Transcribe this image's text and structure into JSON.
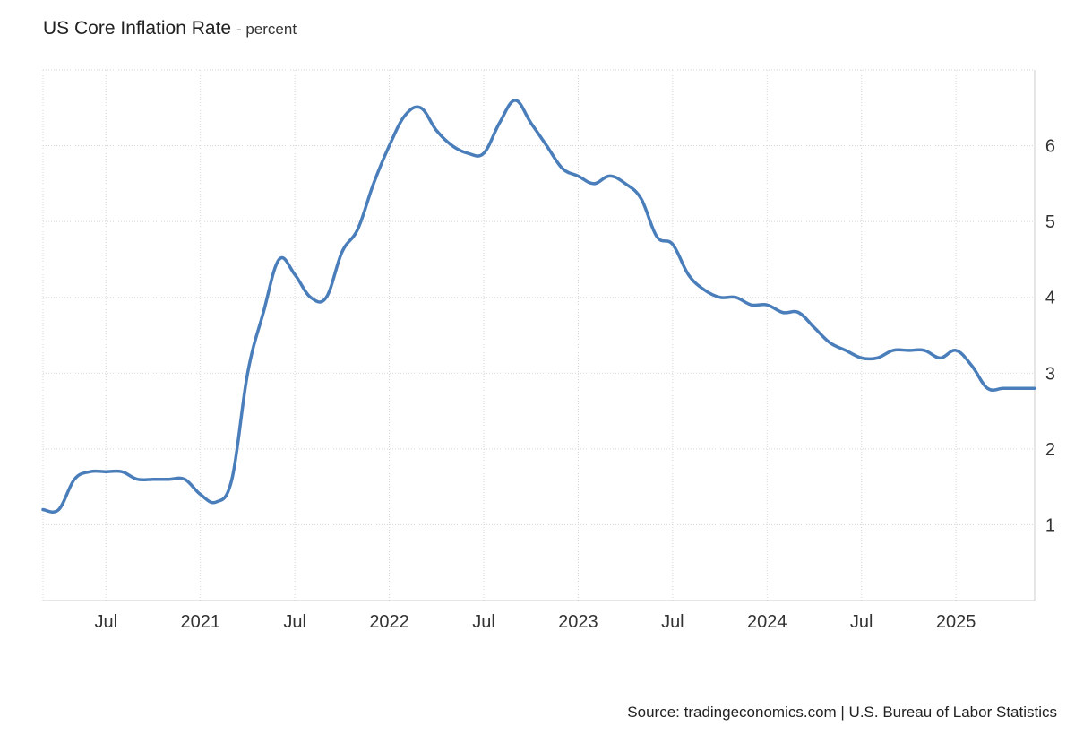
{
  "header": {
    "title": "US Core Inflation Rate",
    "unit": "- percent"
  },
  "footer": {
    "source": "Source: tradingeconomics.com | U.S. Bureau of Labor Statistics"
  },
  "chart_data": {
    "type": "line",
    "title": "US Core Inflation Rate",
    "unit": "percent",
    "x_ticks": [
      {
        "label": "Jul",
        "date": "2020-07"
      },
      {
        "label": "2021",
        "date": "2021-01"
      },
      {
        "label": "Jul",
        "date": "2021-07"
      },
      {
        "label": "2022",
        "date": "2022-01"
      },
      {
        "label": "Jul",
        "date": "2022-07"
      },
      {
        "label": "2023",
        "date": "2023-01"
      },
      {
        "label": "Jul",
        "date": "2023-07"
      },
      {
        "label": "2024",
        "date": "2024-01"
      },
      {
        "label": "Jul",
        "date": "2024-07"
      },
      {
        "label": "2025",
        "date": "2025-01"
      }
    ],
    "y_ticks": [
      1,
      2,
      3,
      4,
      5,
      6
    ],
    "ylim": [
      0,
      7
    ],
    "y_axis_side": "right",
    "grid": true,
    "line_color": "#4a7ebb",
    "x": [
      "2020-03",
      "2020-04",
      "2020-05",
      "2020-06",
      "2020-07",
      "2020-08",
      "2020-09",
      "2020-10",
      "2020-11",
      "2020-12",
      "2021-01",
      "2021-02",
      "2021-03",
      "2021-04",
      "2021-05",
      "2021-06",
      "2021-07",
      "2021-08",
      "2021-09",
      "2021-10",
      "2021-11",
      "2021-12",
      "2022-01",
      "2022-02",
      "2022-03",
      "2022-04",
      "2022-05",
      "2022-06",
      "2022-07",
      "2022-08",
      "2022-09",
      "2022-10",
      "2022-11",
      "2022-12",
      "2023-01",
      "2023-02",
      "2023-03",
      "2023-04",
      "2023-05",
      "2023-06",
      "2023-07",
      "2023-08",
      "2023-09",
      "2023-10",
      "2023-11",
      "2023-12",
      "2024-01",
      "2024-02",
      "2024-03",
      "2024-04",
      "2024-05",
      "2024-06",
      "2024-07",
      "2024-08",
      "2024-09",
      "2024-10",
      "2024-11",
      "2024-12",
      "2025-01",
      "2025-02",
      "2025-03",
      "2025-04",
      "2025-05",
      "2025-06"
    ],
    "y": [
      1.2,
      1.2,
      1.6,
      1.7,
      1.7,
      1.7,
      1.6,
      1.6,
      1.6,
      1.6,
      1.4,
      1.3,
      1.6,
      3.0,
      3.8,
      4.5,
      4.3,
      4.0,
      4.0,
      4.6,
      4.9,
      5.5,
      6.0,
      6.4,
      6.5,
      6.2,
      6.0,
      5.9,
      5.9,
      6.3,
      6.6,
      6.3,
      6.0,
      5.7,
      5.6,
      5.5,
      5.6,
      5.5,
      5.3,
      4.8,
      4.7,
      4.3,
      4.1,
      4.0,
      4.0,
      3.9,
      3.9,
      3.8,
      3.8,
      3.6,
      3.4,
      3.3,
      3.2,
      3.2,
      3.3,
      3.3,
      3.3,
      3.2,
      3.3,
      3.1,
      2.8,
      2.8,
      2.8,
      2.8
    ]
  }
}
